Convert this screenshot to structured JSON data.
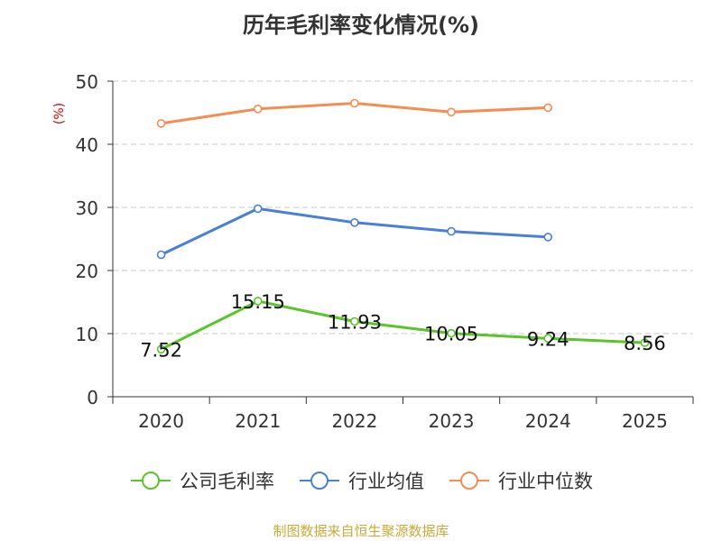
{
  "chart_data": {
    "type": "line",
    "title": "历年毛利率变化情况(%)",
    "ylabel": "(%)",
    "categories": [
      "2020",
      "2021",
      "2022",
      "2023",
      "2024",
      "2025"
    ],
    "ylim": [
      0,
      50
    ],
    "yticks": [
      0,
      10,
      20,
      30,
      40,
      50
    ],
    "grid": true,
    "legend_position": "bottom",
    "series": [
      {
        "name": "公司毛利率",
        "color": "#5ac42a",
        "values": [
          7.52,
          15.15,
          11.93,
          10.05,
          9.24,
          8.56
        ],
        "labels": [
          "7.52",
          "15.15",
          "11.93",
          "10.05",
          "9.24",
          "8.56"
        ]
      },
      {
        "name": "行业均值",
        "color": "#4a7fd6",
        "values": [
          22.5,
          29.8,
          27.6,
          26.2,
          25.3,
          null
        ]
      },
      {
        "name": "行业中位数",
        "color": "#f58c54",
        "values": [
          43.3,
          45.6,
          46.5,
          45.1,
          45.8,
          null
        ]
      }
    ]
  },
  "source": "制图数据来自恒生聚源数据库"
}
